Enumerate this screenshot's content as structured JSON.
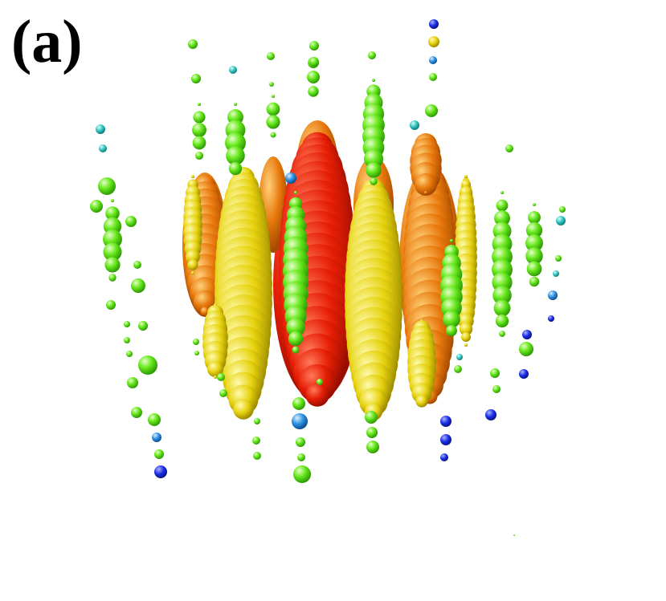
{
  "figure": {
    "panel_label": "(a)"
  },
  "colors": {
    "red": "#e61e05",
    "orange": "#e8780c",
    "yellow": "#e6d20e",
    "green": "#66e81c",
    "cyan": "#2ec4c0",
    "blue": "#1a2ee6",
    "background": "#ffffff"
  }
}
